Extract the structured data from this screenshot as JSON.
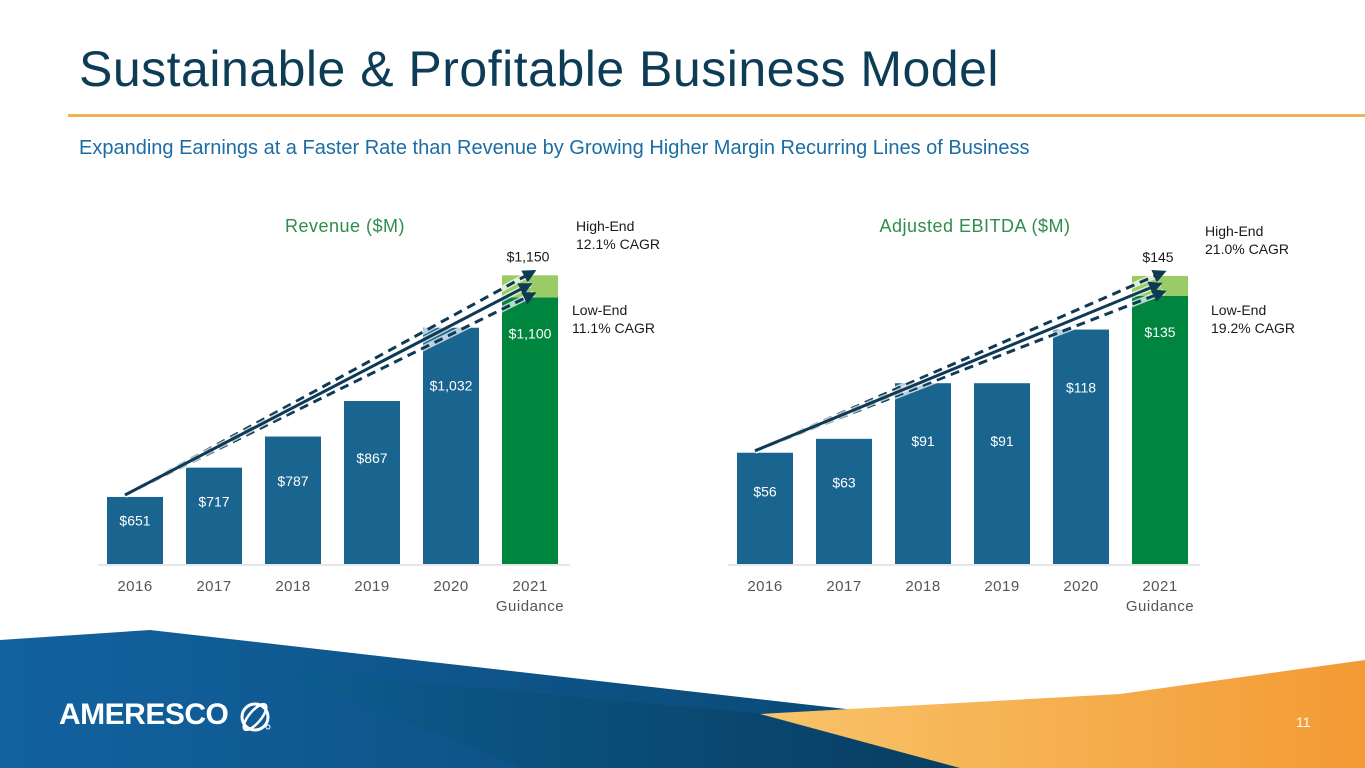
{
  "slide": {
    "title": "Sustainable & Profitable Business Model",
    "subtitle": "Expanding Earnings at a Faster Rate than Revenue by Growing Higher Margin Recurring Lines of Business",
    "page_number": "11",
    "logo_text": "AMERESCO"
  },
  "colors": {
    "bar_blue": "#1a6590",
    "bar_green": "#00853f",
    "bar_light_green": "#99cc66",
    "title_text": "#0d3d56",
    "chart_title_green": "#2f8c4a",
    "subtitle_blue": "#1b6da4",
    "accent_orange": "#f2b453"
  },
  "chart_data": [
    {
      "type": "bar",
      "title": "Revenue ($M)",
      "categories": [
        "2016",
        "2017",
        "2018",
        "2019",
        "2020",
        "2021"
      ],
      "category_sublabels": [
        "",
        "",
        "",
        "",
        "",
        "Guidance"
      ],
      "values": [
        651,
        717,
        787,
        867,
        1032,
        1100
      ],
      "value_labels": [
        "$651",
        "$717",
        "$787",
        "$867",
        "$1,032",
        "$1,100"
      ],
      "guidance_high": {
        "value": 1150,
        "label": "$1,150"
      },
      "ylim": [
        500,
        1180
      ],
      "annotations": {
        "high_end": [
          "High-End",
          "12.1% CAGR"
        ],
        "low_end": [
          "Low-End",
          "11.1% CAGR"
        ]
      }
    },
    {
      "type": "bar",
      "title": "Adjusted EBITDA ($M)",
      "categories": [
        "2016",
        "2017",
        "2018",
        "2019",
        "2020",
        "2021"
      ],
      "category_sublabels": [
        "",
        "",
        "",
        "",
        "",
        "Guidance"
      ],
      "values": [
        56,
        63,
        91,
        91,
        118,
        135
      ],
      "value_labels": [
        "$56",
        "$63",
        "$91",
        "$91",
        "$118",
        "$135"
      ],
      "guidance_high": {
        "value": 145,
        "label": "$145"
      },
      "ylim": [
        0,
        152
      ],
      "annotations": {
        "high_end": [
          "High-End",
          "21.0% CAGR"
        ],
        "low_end": [
          "Low-End",
          "19.2% CAGR"
        ]
      }
    }
  ]
}
